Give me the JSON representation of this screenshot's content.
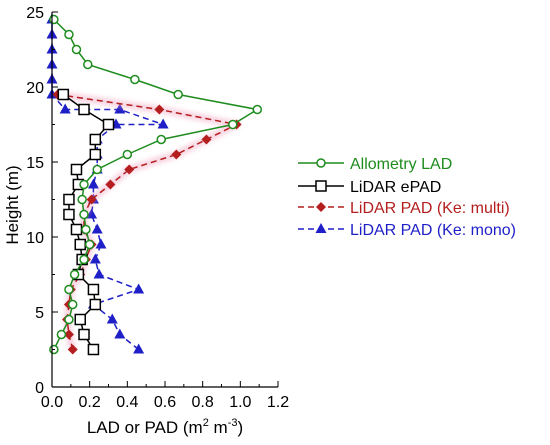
{
  "chart_data": {
    "type": "line",
    "xlabel": "LAD or PAD (m² m⁻³)",
    "xlabel_parts": {
      "prefix": "LAD or PAD (m",
      "sup1": "2",
      "mid": " m",
      "sup2": "-3",
      "suffix": ")"
    },
    "ylabel": "Height (m)",
    "xlim": [
      0,
      1.2
    ],
    "ylim": [
      0,
      25
    ],
    "xticks": [
      0.0,
      0.2,
      0.4,
      0.6,
      0.8,
      1.0,
      1.2
    ],
    "xtick_labels": [
      "0.0",
      "0.2",
      "0.4",
      "0.6",
      "0.8",
      "1.0",
      "1.2"
    ],
    "yticks": [
      0,
      5,
      10,
      15,
      20,
      25
    ],
    "ytick_labels": [
      "0",
      "5",
      "10",
      "15",
      "20",
      "25"
    ],
    "grid": false,
    "legend_position": "right",
    "series": [
      {
        "name": "Allometry LAD",
        "color": "#1e8c1e",
        "line": "solid",
        "marker": "open-circle",
        "x": [
          0.01,
          0.05,
          0.09,
          0.11,
          0.09,
          0.12,
          0.17,
          0.2,
          0.18,
          0.17,
          0.16,
          0.17,
          0.24,
          0.4,
          0.58,
          0.96,
          1.09,
          0.67,
          0.44,
          0.19,
          0.13,
          0.09,
          0.01
        ],
        "y": [
          2.5,
          3.5,
          4.5,
          5.5,
          6.5,
          7.5,
          8.5,
          9.5,
          10.5,
          11.5,
          12.5,
          13.5,
          14.5,
          15.5,
          16.5,
          17.5,
          18.5,
          19.5,
          20.5,
          21.5,
          22.5,
          23.5,
          24.5
        ]
      },
      {
        "name": "LiDAR ePAD",
        "color": "#000000",
        "line": "solid",
        "marker": "open-square",
        "x": [
          0.22,
          0.17,
          0.15,
          0.23,
          0.22,
          0.14,
          0.16,
          0.15,
          0.13,
          0.09,
          0.09,
          0.14,
          0.13,
          0.23,
          0.23,
          0.3,
          0.17,
          0.06
        ],
        "y": [
          2.5,
          3.5,
          4.5,
          5.5,
          6.5,
          7.5,
          8.5,
          9.5,
          10.5,
          11.5,
          12.5,
          13.5,
          14.5,
          15.5,
          16.5,
          17.5,
          18.5,
          19.5
        ]
      },
      {
        "name": "LiDAR PAD (Ke: multi)",
        "color": "#b41e1e",
        "line": "dashed",
        "marker": "filled-diamond",
        "x": [
          0.11,
          0.09,
          0.08,
          0.09,
          0.1,
          0.15,
          0.18,
          0.21,
          0.17,
          0.17,
          0.21,
          0.31,
          0.41,
          0.66,
          0.82,
          0.98,
          0.57,
          0.03
        ],
        "y": [
          2.5,
          3.5,
          4.5,
          5.5,
          6.5,
          7.5,
          8.5,
          9.5,
          10.5,
          11.5,
          12.5,
          13.5,
          14.5,
          15.5,
          16.5,
          17.5,
          18.5,
          19.5
        ]
      },
      {
        "name": "LiDAR PAD (Ke: mono)",
        "color": "#1f1fc8",
        "line": "dashed",
        "marker": "filled-triangle",
        "x": [
          0.46,
          0.36,
          0.32,
          0.22,
          0.46,
          0.25,
          0.23,
          0.26,
          0.24,
          0.21,
          0.22,
          0.22,
          0.24,
          0.24,
          0.24,
          0.34,
          0.59,
          0.36,
          0.07,
          0.0,
          0.0,
          0.0,
          0.0,
          0.0,
          0.0,
          0.0
        ],
        "y": [
          2.5,
          3.5,
          4.5,
          5.5,
          6.5,
          7.5,
          8.5,
          9.5,
          10.5,
          11.5,
          12.5,
          13.5,
          14.5,
          15.5,
          16.5,
          17.5,
          17.5,
          18.5,
          18.5,
          19.5,
          20.5,
          21.5,
          22.5,
          23.5,
          24.5,
          24.5
        ]
      }
    ]
  }
}
